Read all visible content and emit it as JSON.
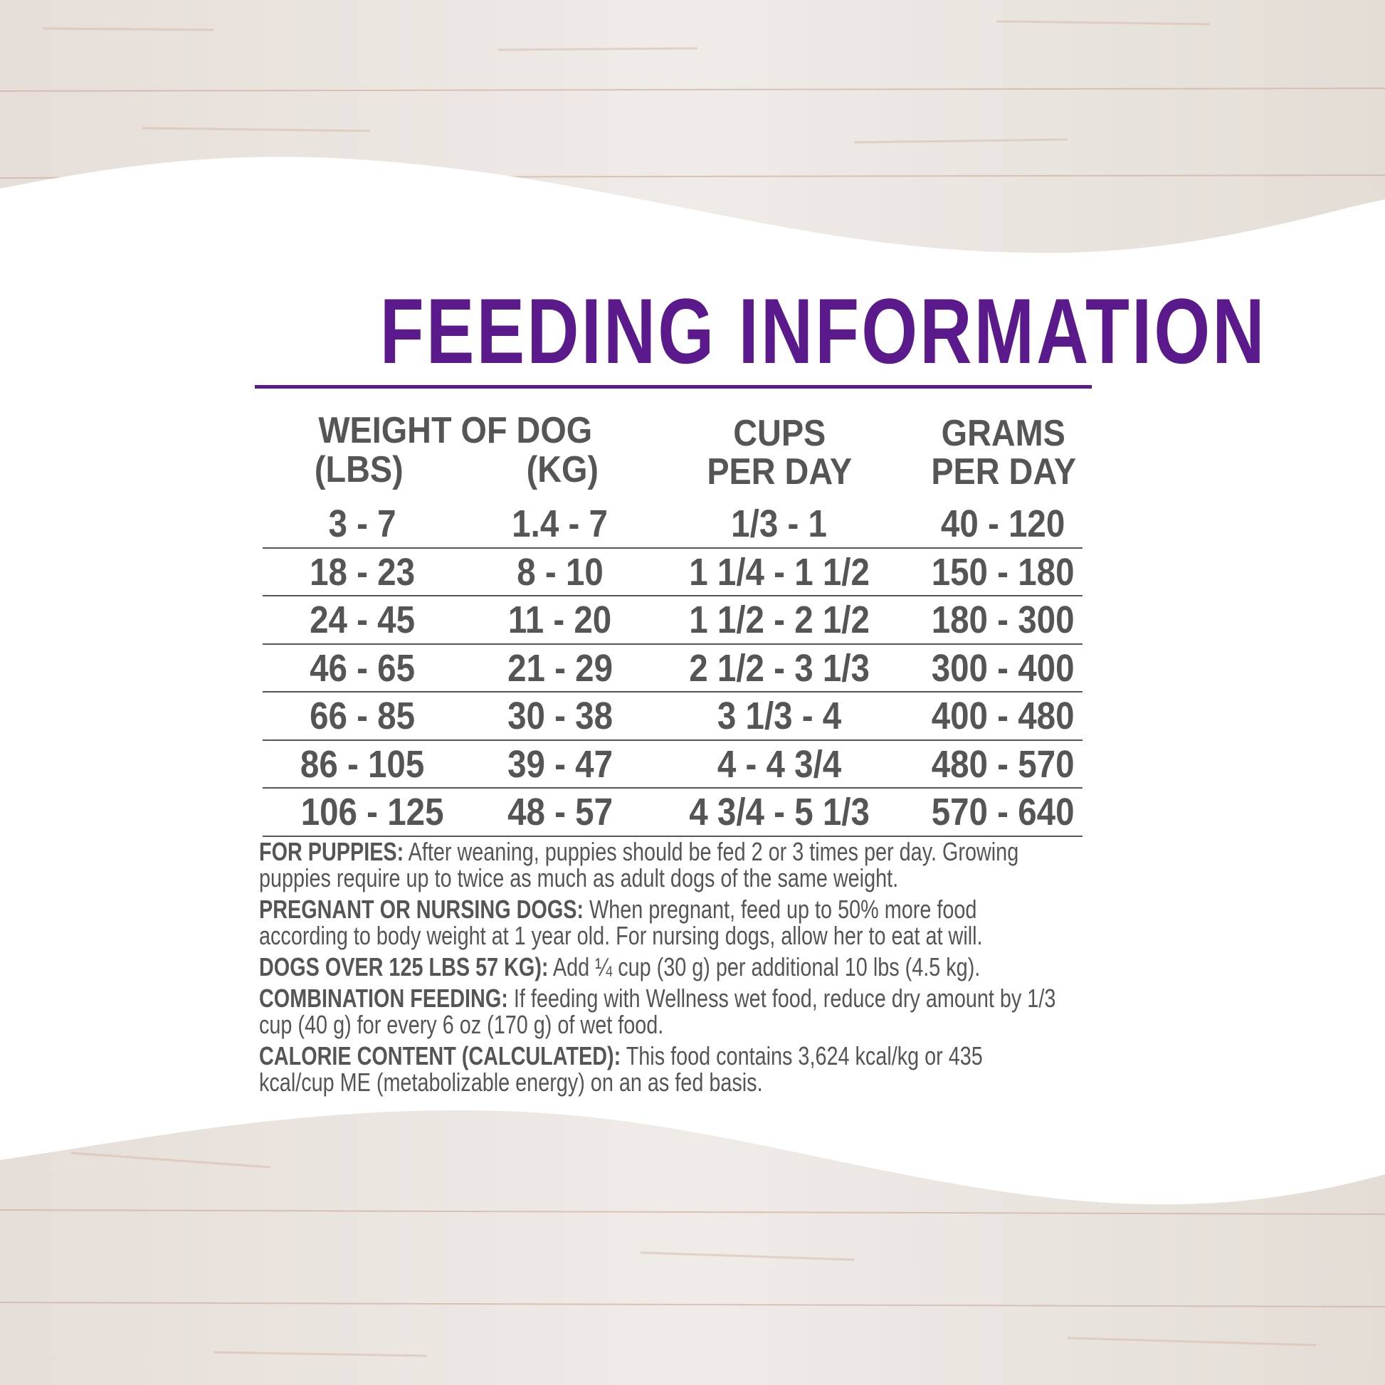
{
  "colors": {
    "title": "#5b1a8c",
    "text": "#555555",
    "wood": "#e8e2dc"
  },
  "title": "FEEDING INFORMATION",
  "headers": {
    "weight": "WEIGHT OF DOG",
    "lbs": "(LBS)",
    "kg": "(KG)",
    "cups_1": "CUPS",
    "cups_2": "PER DAY",
    "grams_1": "GRAMS",
    "grams_2": "PER DAY"
  },
  "rows": [
    [
      "3 - 7",
      "1.4 - 7",
      "1/3 - 1",
      "40 - 120"
    ],
    [
      "18 - 23",
      "8 - 10",
      "1 1/4 - 1 1/2",
      "150 - 180"
    ],
    [
      "24 - 45",
      "11 - 20",
      "1 1/2 - 2 1/2",
      "180 - 300"
    ],
    [
      "46 - 65",
      "21 - 29",
      "2 1/2 - 3 1/3",
      "300 - 400"
    ],
    [
      "66 - 85",
      "30 - 38",
      "3 1/3 - 4",
      "400 - 480"
    ],
    [
      "86 - 105",
      "39 - 47",
      "4 - 4 3/4",
      "480 - 570"
    ],
    [
      "106 - 125",
      "48 - 57",
      "4 3/4 - 5 1/3",
      "570 - 640"
    ]
  ],
  "notes": [
    {
      "label": "FOR PUPPIES:",
      "text": " After weaning, puppies should be fed 2 or 3 times per day. Growing puppies require up to twice as much as adult dogs of the same weight."
    },
    {
      "label": "PREGNANT OR NURSING DOGS:",
      "text": " When pregnant, feed up to 50% more food according to body weight at 1 year old. For nursing dogs, allow her to eat at will."
    },
    {
      "label": "DOGS OVER 125 LBS 57 KG):",
      "text": " Add ¼ cup (30 g) per additional 10 lbs (4.5 kg)."
    },
    {
      "label": "COMBINATION FEEDING:",
      "text": " If feeding with Wellness wet food, reduce dry amount by 1/3 cup (40 g) for every 6 oz (170 g) of wet food."
    },
    {
      "label": "CALORIE CONTENT (CALCULATED):",
      "text": " This food contains 3,624 kcal/kg or 435 kcal/cup ME (metabolizable energy) on an as fed basis."
    }
  ]
}
